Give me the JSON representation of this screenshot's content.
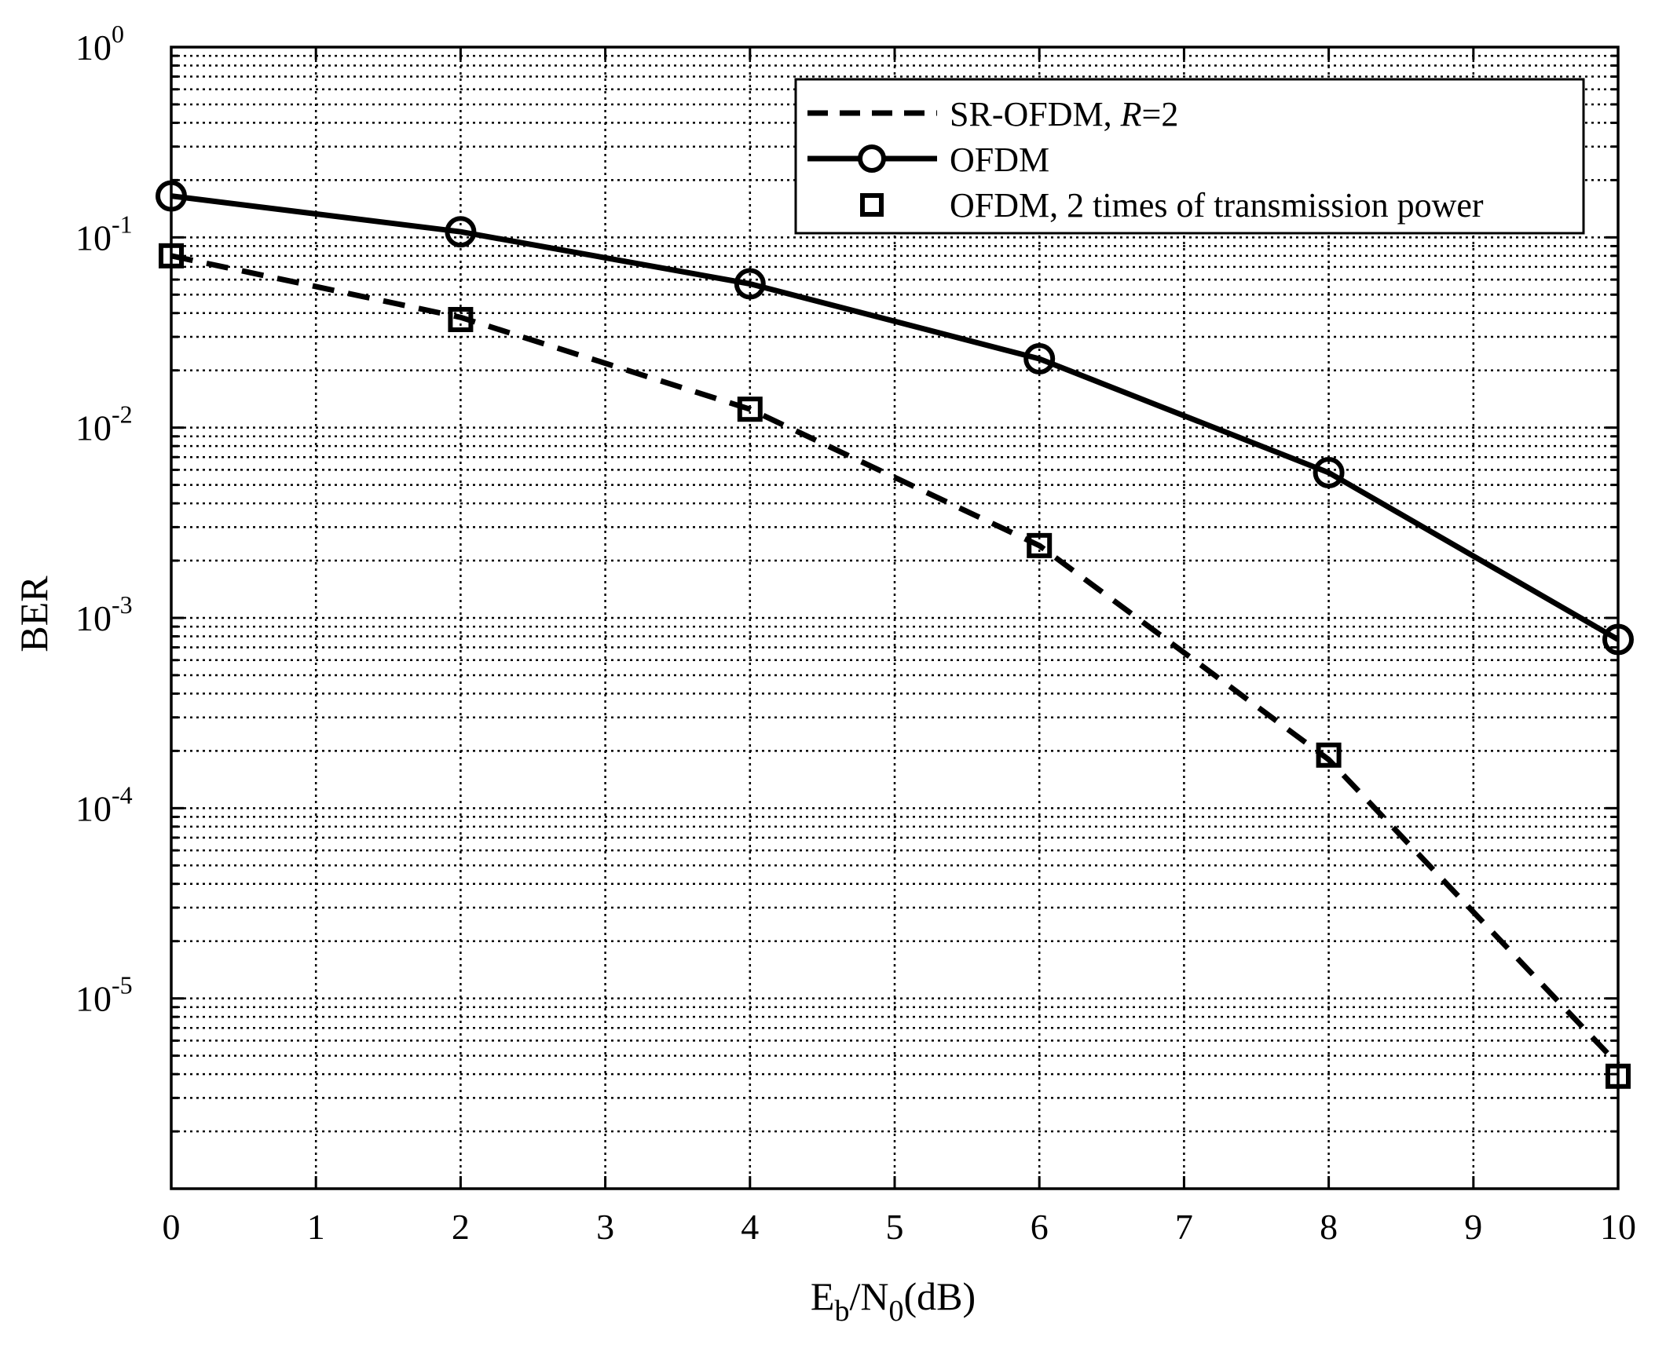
{
  "chart_data": {
    "type": "line",
    "title": "",
    "xlabel": {
      "main": "E",
      "sub1": "b",
      "mid": "/N",
      "sub2": "0",
      "tail": "(dB)"
    },
    "ylabel": "BER",
    "x_range": [
      0,
      10
    ],
    "y_range": [
      1e-06,
      1
    ],
    "y_scale": "log",
    "grid": true,
    "legend_position": "top-right",
    "x_ticks": [
      "0",
      "1",
      "2",
      "3",
      "4",
      "5",
      "6",
      "7",
      "8",
      "9",
      "10"
    ],
    "y_ticks": [
      {
        "value": 1,
        "base": "10",
        "exp": "0"
      },
      {
        "value": 0.1,
        "base": "10",
        "exp": "-1"
      },
      {
        "value": 0.01,
        "base": "10",
        "exp": "-2"
      },
      {
        "value": 0.001,
        "base": "10",
        "exp": "-3"
      },
      {
        "value": 0.0001,
        "base": "10",
        "exp": "-4"
      },
      {
        "value": 1e-05,
        "base": "10",
        "exp": "-5"
      }
    ],
    "series": [
      {
        "name": "SR-OFDM, ",
        "name_italic": "R",
        "name_tail": "=2",
        "style": "dashed",
        "marker": "none",
        "x": [
          0,
          2,
          4,
          6,
          8,
          10
        ],
        "y": [
          0.08,
          0.038,
          0.0125,
          0.0024,
          0.00018,
          4.5e-06
        ]
      },
      {
        "name": "OFDM",
        "style": "solid",
        "marker": "circle",
        "x": [
          0,
          2,
          4,
          6,
          8,
          10
        ],
        "y": [
          0.165,
          0.107,
          0.057,
          0.023,
          0.0058,
          0.00077
        ]
      },
      {
        "name": "OFDM, 2 times of transmission power",
        "style": "none",
        "marker": "square",
        "x": [
          0,
          2,
          4,
          6,
          8,
          10
        ],
        "y": [
          0.08,
          0.037,
          0.0125,
          0.0024,
          0.00019,
          3.9e-06
        ]
      }
    ],
    "colors": {
      "line": "#000000",
      "grid": "#000000",
      "background": "#ffffff"
    }
  }
}
